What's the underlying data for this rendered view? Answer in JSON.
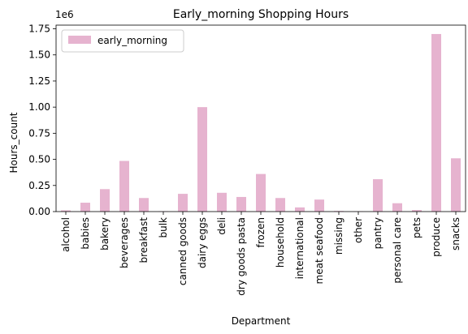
{
  "chart_data": {
    "type": "bar",
    "title": "Early_morning Shopping Hours",
    "xlabel": "Department",
    "ylabel": "Hours_count",
    "offset_label": "1e6",
    "ylim": [
      0,
      1.785
    ],
    "yticks": [
      0.0,
      0.25,
      0.5,
      0.75,
      1.0,
      1.25,
      1.5,
      1.75
    ],
    "ytick_labels": [
      "0.00",
      "0.25",
      "0.50",
      "0.75",
      "1.00",
      "1.25",
      "1.50",
      "1.75"
    ],
    "legend": {
      "position": "top-left"
    },
    "grid": false,
    "bar_color": "#e6b3cf",
    "categories": [
      "alcohol",
      "babies",
      "bakery",
      "beverages",
      "breakfast",
      "bulk",
      "canned goods",
      "dairy eggs",
      "deli",
      "dry goods pasta",
      "frozen",
      "household",
      "international",
      "meat seafood",
      "missing",
      "other",
      "pantry",
      "personal care",
      "pets",
      "produce",
      "snacks"
    ],
    "series": [
      {
        "name": "early_morning",
        "values": [
          0.012,
          0.085,
          0.215,
          0.485,
          0.13,
          0.004,
          0.17,
          1.0,
          0.18,
          0.14,
          0.36,
          0.13,
          0.04,
          0.115,
          0.006,
          0.003,
          0.31,
          0.08,
          0.015,
          1.7,
          0.51
        ]
      }
    ]
  }
}
